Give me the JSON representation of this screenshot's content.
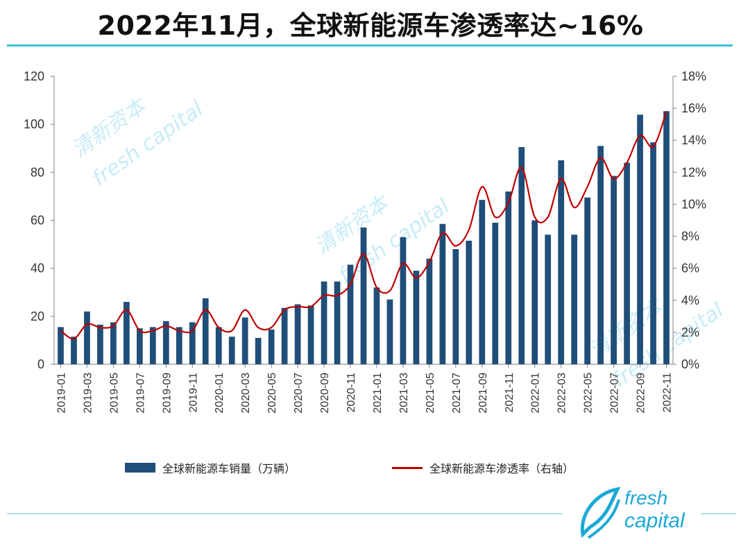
{
  "title": "2022年11月，全球新能源车渗透率达~16%",
  "legend": {
    "bar_label": "全球新能源车销量（万辆）",
    "line_label": "全球新能源车渗透率（右轴）"
  },
  "logo": {
    "line1": "fresh",
    "line2": "capital"
  },
  "watermark": {
    "cn": "清新资本",
    "en": "fresh capital"
  },
  "colors": {
    "bar": "#1f4e79",
    "line": "#c00000",
    "accent": "#3bbfdd"
  },
  "chart_data": {
    "type": "bar",
    "categories": [
      "2019-01",
      "2019-02",
      "2019-03",
      "2019-04",
      "2019-05",
      "2019-06",
      "2019-07",
      "2019-08",
      "2019-09",
      "2019-10",
      "2019-11",
      "2019-12",
      "2020-01",
      "2020-02",
      "2020-03",
      "2020-04",
      "2020-05",
      "2020-06",
      "2020-07",
      "2020-08",
      "2020-09",
      "2020-10",
      "2020-11",
      "2020-12",
      "2021-01",
      "2021-02",
      "2021-03",
      "2021-04",
      "2021-05",
      "2021-06",
      "2021-07",
      "2021-08",
      "2021-09",
      "2021-10",
      "2021-11",
      "2021-12",
      "2022-01",
      "2022-02",
      "2022-03",
      "2022-04",
      "2022-05",
      "2022-06",
      "2022-07",
      "2022-08",
      "2022-09",
      "2022-10",
      "2022-11"
    ],
    "tick_labels": [
      "2019-01",
      "2019-03",
      "2019-05",
      "2019-07",
      "2019-09",
      "2019-11",
      "2020-01",
      "2020-03",
      "2020-05",
      "2020-07",
      "2020-09",
      "2020-11",
      "2021-01",
      "2021-03",
      "2021-05",
      "2021-07",
      "2021-09",
      "2021-11",
      "2022-01",
      "2022-03",
      "2022-05",
      "2022-07",
      "2022-09",
      "2022-11"
    ],
    "series": [
      {
        "name": "全球新能源车销量（万辆）",
        "axis": "left",
        "values": [
          15.5,
          11.5,
          22,
          16.5,
          17.5,
          26,
          15,
          15.5,
          18,
          15.5,
          17.5,
          27.5,
          15.5,
          11.5,
          19.5,
          11,
          14.5,
          23.5,
          25,
          24.5,
          34.5,
          34.5,
          41.5,
          57,
          32,
          27,
          53,
          39,
          44,
          58.5,
          48,
          51.5,
          68.5,
          59,
          72,
          90.5,
          60,
          54,
          85,
          54,
          69.5,
          91,
          78.5,
          84,
          104,
          92.5,
          105.5
        ]
      },
      {
        "name": "全球新能源车渗透率（右轴）",
        "axis": "right",
        "values": [
          0.021,
          0.016,
          0.025,
          0.023,
          0.024,
          0.034,
          0.021,
          0.021,
          0.024,
          0.021,
          0.021,
          0.034,
          0.023,
          0.021,
          0.034,
          0.023,
          0.023,
          0.034,
          0.036,
          0.036,
          0.043,
          0.043,
          0.05,
          0.069,
          0.048,
          0.046,
          0.063,
          0.054,
          0.064,
          0.082,
          0.074,
          0.084,
          0.111,
          0.092,
          0.101,
          0.123,
          0.092,
          0.092,
          0.116,
          0.098,
          0.111,
          0.129,
          0.116,
          0.126,
          0.143,
          0.136,
          0.158
        ]
      }
    ],
    "ylim_left": [
      0,
      120
    ],
    "yticks_left": [
      "0",
      "20",
      "40",
      "60",
      "80",
      "100",
      "120"
    ],
    "ylim_right": [
      0,
      0.18
    ],
    "yticks_right": [
      "0%",
      "2%",
      "4%",
      "6%",
      "8%",
      "10%",
      "12%",
      "14%",
      "16%",
      "18%"
    ],
    "grid": false,
    "legend_position": "bottom"
  }
}
